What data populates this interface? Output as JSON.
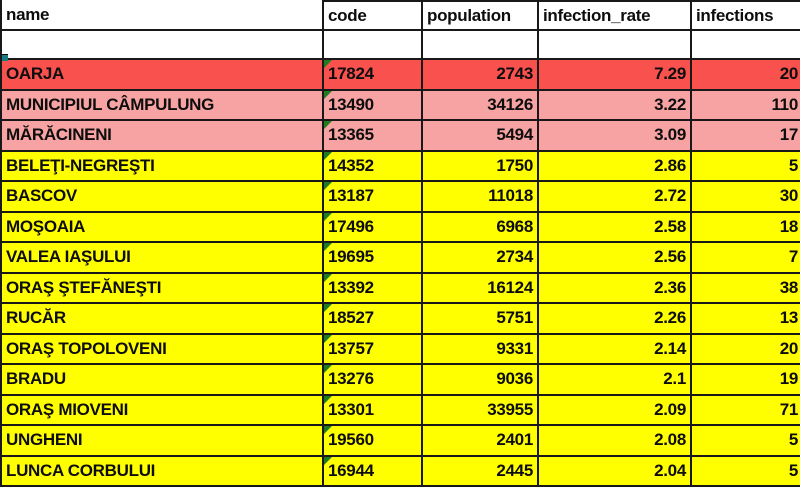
{
  "table": {
    "columns": [
      {
        "key": "name",
        "label": "name",
        "align": "left"
      },
      {
        "key": "code",
        "label": "code",
        "align": "left"
      },
      {
        "key": "population",
        "label": "population",
        "align": "right"
      },
      {
        "key": "infection_rate",
        "label": "infection_rate",
        "align": "right"
      },
      {
        "key": "infections",
        "label": "infections",
        "align": "right"
      }
    ],
    "empty_row": {
      "name": "",
      "code": "",
      "population": "",
      "infection_rate": "",
      "infections": ""
    },
    "rows": [
      {
        "name": "OARJA",
        "code": "17824",
        "population": "2743",
        "infection_rate": "7.29",
        "infections": "20",
        "highlight": "red"
      },
      {
        "name": "MUNICIPIUL CÂMPULUNG",
        "code": "13490",
        "population": "34126",
        "infection_rate": "3.22",
        "infections": "110",
        "highlight": "pink"
      },
      {
        "name": "MĂRĂCINENI",
        "code": "13365",
        "population": "5494",
        "infection_rate": "3.09",
        "infections": "17",
        "highlight": "pink"
      },
      {
        "name": "BELEŢI-NEGREŞTI",
        "code": "14352",
        "population": "1750",
        "infection_rate": "2.86",
        "infections": "5",
        "highlight": "yellow"
      },
      {
        "name": "BASCOV",
        "code": "13187",
        "population": "11018",
        "infection_rate": "2.72",
        "infections": "30",
        "highlight": "yellow"
      },
      {
        "name": "MOŞOAIA",
        "code": "17496",
        "population": "6968",
        "infection_rate": "2.58",
        "infections": "18",
        "highlight": "yellow"
      },
      {
        "name": "VALEA IAŞULUI",
        "code": "19695",
        "population": "2734",
        "infection_rate": "2.56",
        "infections": "7",
        "highlight": "yellow"
      },
      {
        "name": "ORAŞ ŞTEFĂNEŞTI",
        "code": "13392",
        "population": "16124",
        "infection_rate": "2.36",
        "infections": "38",
        "highlight": "yellow"
      },
      {
        "name": "RUCĂR",
        "code": "18527",
        "population": "5751",
        "infection_rate": "2.26",
        "infections": "13",
        "highlight": "yellow"
      },
      {
        "name": "ORAŞ TOPOLOVENI",
        "code": "13757",
        "population": "9331",
        "infection_rate": "2.14",
        "infections": "20",
        "highlight": "yellow"
      },
      {
        "name": "BRADU",
        "code": "13276",
        "population": "9036",
        "infection_rate": "2.1",
        "infections": "19",
        "highlight": "yellow"
      },
      {
        "name": "ORAŞ MIOVENI",
        "code": "13301",
        "population": "33955",
        "infection_rate": "2.09",
        "infections": "71",
        "highlight": "yellow"
      },
      {
        "name": "UNGHENI",
        "code": "19560",
        "population": "2401",
        "infection_rate": "2.08",
        "infections": "5",
        "highlight": "yellow"
      },
      {
        "name": "LUNCA CORBULUI",
        "code": "16944",
        "population": "2445",
        "infection_rate": "2.04",
        "infections": "5",
        "highlight": "yellow"
      }
    ],
    "colors": {
      "red": "#f8514e",
      "pink": "#f8a3a3",
      "yellow": "#ffff00",
      "error_indicator_green": "#1f7c21",
      "fill_handle_teal": "#1a7b82",
      "gridline": "#181818"
    }
  }
}
